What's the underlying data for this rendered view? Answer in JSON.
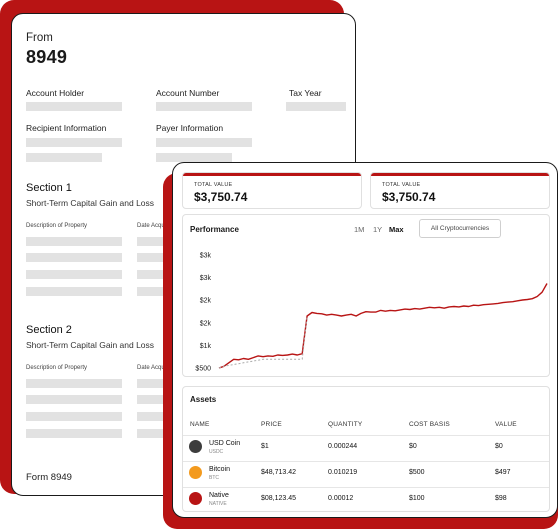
{
  "form": {
    "from_label": "From",
    "form_number": "8949",
    "fields": {
      "account_holder": "Account Holder",
      "account_number": "Account Number",
      "tax_year": "Tax Year",
      "recipient_information": "Recipient Information",
      "payer_information": "Payer Information"
    },
    "sections": [
      {
        "title": "Section 1",
        "subtitle": "Short-Term Capital Gain and Loss",
        "col1": "Description of Property",
        "col2": "Date Acquired"
      },
      {
        "title": "Section 2",
        "subtitle": "Short-Term Capital Gain and Loss",
        "col1": "Description of Property",
        "col2": "Date Acquired"
      }
    ],
    "footer": "Form 8949"
  },
  "dashboard": {
    "value_cards": [
      {
        "label": "TOTAL VALUE",
        "value": "$3,750.74"
      },
      {
        "label": "TOTAL VALUE",
        "value": "$3,750.74"
      }
    ],
    "performance": {
      "title": "Performance",
      "ranges": [
        "1M",
        "1Y",
        "Max"
      ],
      "active_range": "Max",
      "filter_label": "All Cryptocurrencies"
    },
    "assets": {
      "title": "Assets",
      "columns": [
        "NAME",
        "PRICE",
        "QUANTITY",
        "COST BASIS",
        "VALUE"
      ],
      "rows": [
        {
          "name": "USD Coin",
          "symbol": "USDC",
          "price": "$1",
          "quantity": "0.000244",
          "cost_basis": "$0",
          "value": "$0",
          "color": "#3d3d3d"
        },
        {
          "name": "Bitcoin",
          "symbol": "BTC",
          "price": "$48,713.42",
          "quantity": "0.010219",
          "cost_basis": "$500",
          "value": "$497",
          "color": "#f39a1e"
        },
        {
          "name": "Native",
          "symbol": "NATIVE",
          "price": "$08,123.45",
          "quantity": "0.00012",
          "cost_basis": "$100",
          "value": "$98",
          "color": "#b81414"
        }
      ]
    }
  },
  "chart_data": {
    "type": "line",
    "title": "Performance",
    "ytick_labels": [
      "$3k",
      "$3k",
      "$2k",
      "$2k",
      "$1k",
      "$500"
    ],
    "ylim": [
      500,
      3200
    ],
    "grid": false,
    "series": [
      {
        "style": "solid",
        "color": "#b81414",
        "values": [
          500,
          540,
          620,
          700,
          690,
          720,
          700,
          740,
          780,
          760,
          780,
          770,
          800,
          790,
          800,
          820,
          800,
          830,
          1700,
          1780,
          1760,
          1750,
          1720,
          1740,
          1720,
          1700,
          1720,
          1740,
          1700,
          1760,
          1800,
          1790,
          1790,
          1830,
          1810,
          1830,
          1820,
          1840,
          1860,
          1850,
          1870,
          1860,
          1880,
          1900,
          1890,
          1900,
          1880,
          1910,
          1920,
          1910,
          1930,
          1920,
          1950,
          1940,
          1960,
          1970,
          1980,
          1990,
          2010,
          2020,
          2030,
          2050,
          2070,
          2080,
          2100,
          2150,
          2250,
          2450
        ]
      },
      {
        "style": "dashed",
        "color": "#aaaaaa",
        "values": [
          500,
          540,
          560,
          580,
          600,
          620,
          640,
          660,
          680,
          700,
          700,
          700,
          700,
          700,
          700,
          700,
          700,
          700,
          1700
        ]
      }
    ]
  }
}
